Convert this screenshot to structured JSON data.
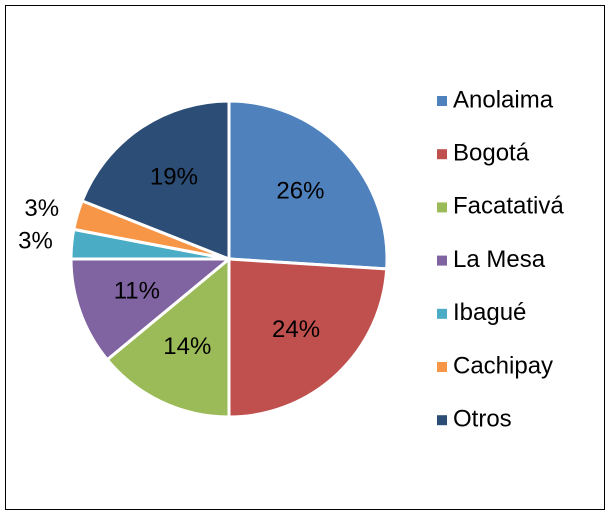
{
  "chart_data": {
    "type": "pie",
    "categories": [
      "Anolaima",
      "Bogotá",
      "Facatativá",
      "La Mesa",
      "Ibagué",
      "Cachipay",
      "Otros"
    ],
    "values": [
      26,
      24,
      14,
      11,
      3,
      3,
      19
    ],
    "value_labels": [
      "26%",
      "24%",
      "14%",
      "11%",
      "3%",
      "3%",
      "19%"
    ],
    "colors": [
      "#4f81bd",
      "#c0504d",
      "#9bbb59",
      "#8064a2",
      "#4bacc6",
      "#f79646",
      "#2c4d75"
    ],
    "legend": "right"
  }
}
